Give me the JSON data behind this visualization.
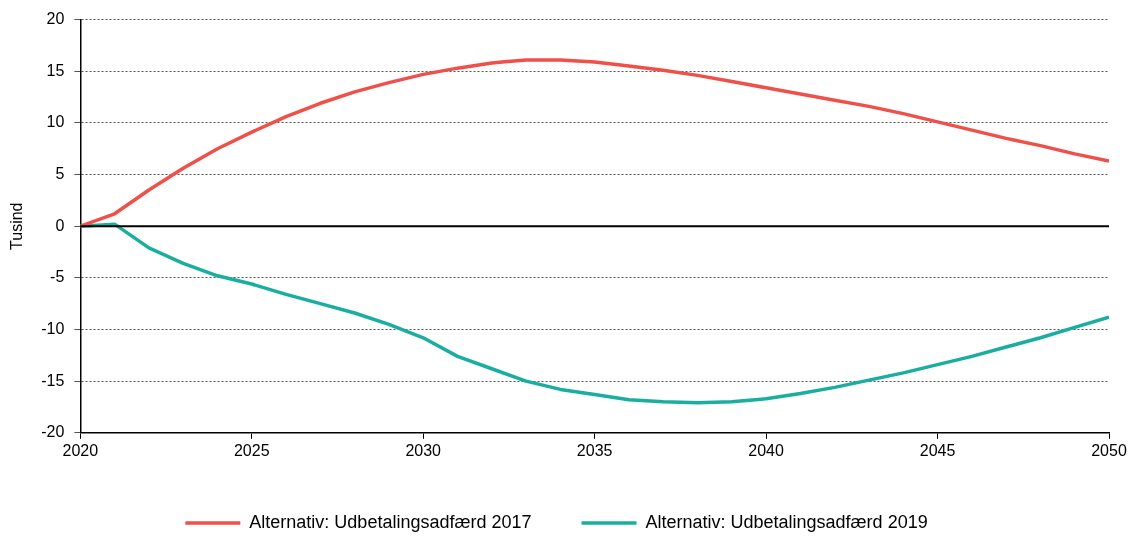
{
  "chart_data": {
    "type": "line",
    "ylabel": "Tusind",
    "x": [
      2020,
      2021,
      2022,
      2023,
      2024,
      2025,
      2026,
      2027,
      2028,
      2029,
      2030,
      2031,
      2032,
      2033,
      2034,
      2035,
      2036,
      2037,
      2038,
      2039,
      2040,
      2041,
      2042,
      2043,
      2044,
      2045,
      2046,
      2047,
      2048,
      2049,
      2050
    ],
    "series": [
      {
        "name": "Alternativ: Udbetalingsadfærd 2017",
        "color": "#f0504a",
        "values": [
          0,
          1.2,
          3.5,
          5.6,
          7.5,
          9.1,
          10.6,
          11.9,
          13.0,
          13.9,
          14.7,
          15.3,
          15.8,
          16.1,
          16.1,
          15.9,
          15.5,
          15.1,
          14.6,
          14.0,
          13.4,
          12.8,
          12.2,
          11.6,
          10.9,
          10.1,
          9.3,
          8.5,
          7.8,
          7.0,
          6.3
        ]
      },
      {
        "name": "Alternativ: Udbetalingsadfærd 2019",
        "color": "#1aaea0",
        "values": [
          0,
          0.2,
          -2.1,
          -3.6,
          -4.8,
          -5.6,
          -6.6,
          -7.5,
          -8.4,
          -9.5,
          -10.8,
          -12.6,
          -13.8,
          -15.0,
          -15.8,
          -16.3,
          -16.8,
          -17.0,
          -17.1,
          -17.0,
          -16.7,
          -16.2,
          -15.6,
          -14.9,
          -14.2,
          -13.4,
          -12.6,
          -11.7,
          -10.8,
          -9.8,
          -8.8
        ]
      }
    ],
    "xlim": [
      2020,
      2050
    ],
    "xticks": [
      2020,
      2025,
      2030,
      2035,
      2040,
      2045,
      2050
    ],
    "ylim": [
      -20,
      20
    ],
    "yticks": [
      -20,
      -15,
      -10,
      -5,
      0,
      5,
      10,
      15,
      20
    ],
    "ref_lines": [
      {
        "axis": "y",
        "value": 0,
        "color": "#000000"
      }
    ],
    "grid": "y",
    "legend": "bottom",
    "marker": "none",
    "line_style": "solid"
  }
}
